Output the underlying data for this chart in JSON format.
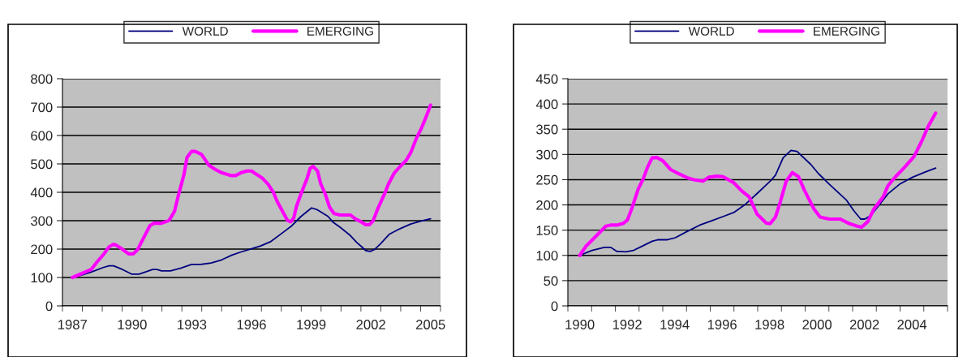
{
  "chart_data": [
    {
      "type": "line",
      "legend": "top",
      "grid": "y",
      "xlim": [
        1986.5,
        2005.5
      ],
      "ylim": [
        0,
        800
      ],
      "yticks": [
        0,
        100,
        200,
        300,
        400,
        500,
        600,
        700,
        800
      ],
      "xticks": [
        {
          "value": 1986.5,
          "label": null
        },
        {
          "value": 1987,
          "label": "1987"
        },
        {
          "value": 1987.5,
          "label": null
        },
        {
          "value": 1988.5,
          "label": null
        },
        {
          "value": 1989.5,
          "label": null
        },
        {
          "value": 1990,
          "label": "1990"
        },
        {
          "value": 1990.5,
          "label": null
        },
        {
          "value": 1991.5,
          "label": null
        },
        {
          "value": 1992.5,
          "label": null
        },
        {
          "value": 1993,
          "label": "1993"
        },
        {
          "value": 1993.5,
          "label": null
        },
        {
          "value": 1994.5,
          "label": null
        },
        {
          "value": 1995.5,
          "label": null
        },
        {
          "value": 1996,
          "label": "1996"
        },
        {
          "value": 1996.5,
          "label": null
        },
        {
          "value": 1997.5,
          "label": null
        },
        {
          "value": 1998.5,
          "label": null
        },
        {
          "value": 1999,
          "label": "1999"
        },
        {
          "value": 1999.5,
          "label": null
        },
        {
          "value": 2000.5,
          "label": null
        },
        {
          "value": 2001.5,
          "label": null
        },
        {
          "value": 2002,
          "label": "2002"
        },
        {
          "value": 2002.5,
          "label": null
        },
        {
          "value": 2003.5,
          "label": null
        },
        {
          "value": 2004.5,
          "label": null
        },
        {
          "value": 2005,
          "label": "2005"
        },
        {
          "value": 2005.5,
          "label": null
        }
      ],
      "series": [
        {
          "name": "WORLD",
          "color": "#000080",
          "x": [
            1987.0,
            1987.48,
            1987.94,
            1988.54,
            1988.84,
            1989.07,
            1989.52,
            1989.97,
            1990.35,
            1990.65,
            1991.03,
            1991.25,
            1991.48,
            1991.93,
            1992.46,
            1992.99,
            1993.44,
            1993.97,
            1994.5,
            1995.02,
            1995.48,
            1996.0,
            1996.46,
            1996.98,
            1997.59,
            1998.04,
            1998.49,
            1999.02,
            1999.32,
            1999.85,
            2000.08,
            2000.45,
            2000.98,
            2001.28,
            2001.51,
            2001.74,
            2001.96,
            2002.19,
            2002.49,
            2002.94,
            2003.47,
            2004.0,
            2004.53,
            2005.0
          ],
          "values": [
            100,
            109,
            119,
            135,
            141,
            141,
            128,
            112,
            112,
            119,
            128,
            128,
            123,
            123,
            133,
            146,
            146,
            151,
            162,
            179,
            190,
            201,
            211,
            227,
            259,
            283,
            315,
            345,
            338,
            315,
            296,
            277,
            247,
            224,
            210,
            195,
            192,
            199,
            219,
            253,
            272,
            288,
            299,
            307
          ]
        },
        {
          "name": "EMERGING",
          "color": "#ff00ff",
          "x": [
            1987.0,
            1987.94,
            1988.24,
            1988.54,
            1988.84,
            1989.07,
            1989.22,
            1989.44,
            1989.82,
            1990.05,
            1990.27,
            1990.5,
            1990.9,
            1991.1,
            1991.48,
            1991.86,
            1992.13,
            1992.31,
            1992.61,
            1992.76,
            1992.99,
            1993.18,
            1993.49,
            1993.85,
            1994.19,
            1994.5,
            1994.95,
            1995.2,
            1995.48,
            1995.78,
            1996.0,
            1996.23,
            1996.53,
            1996.83,
            1997.1,
            1997.29,
            1997.59,
            1997.81,
            1997.97,
            1998.12,
            1998.27,
            1998.49,
            1998.79,
            1998.95,
            1999.1,
            1999.32,
            1999.47,
            1999.7,
            1999.93,
            2000.15,
            2000.45,
            2000.98,
            2001.21,
            2001.51,
            2001.74,
            2001.93,
            2002.11,
            2002.34,
            2002.71,
            2002.87,
            2003.17,
            2003.39,
            2003.77,
            2004.0,
            2004.3,
            2004.53,
            2004.75,
            2005.0
          ],
          "values": [
            100,
            128,
            155,
            179,
            208,
            217,
            213,
            203,
            183,
            183,
            197,
            229,
            283,
            291,
            291,
            301,
            333,
            384,
            464,
            523,
            544,
            544,
            533,
            496,
            480,
            469,
            459,
            459,
            469,
            475,
            475,
            464,
            451,
            429,
            400,
            368,
            329,
            301,
            296,
            309,
            352,
            395,
            448,
            485,
            491,
            475,
            432,
            395,
            347,
            325,
            320,
            320,
            307,
            296,
            286,
            286,
            299,
            341,
            398,
            427,
            467,
            485,
            512,
            539,
            592,
            624,
            661,
            707
          ]
        }
      ]
    },
    {
      "type": "line",
      "legend": "top",
      "grid": "y",
      "xlim": [
        1989.5,
        2005.5
      ],
      "ylim": [
        0,
        450
      ],
      "yticks": [
        0,
        50,
        100,
        150,
        200,
        250,
        300,
        350,
        400,
        450
      ],
      "xticks": [
        {
          "value": 1989.5,
          "label": null
        },
        {
          "value": 1990,
          "label": "1990"
        },
        {
          "value": 1990.5,
          "label": null
        },
        {
          "value": 1991.5,
          "label": null
        },
        {
          "value": 1992,
          "label": "1992"
        },
        {
          "value": 1992.5,
          "label": null
        },
        {
          "value": 1993.5,
          "label": null
        },
        {
          "value": 1994,
          "label": "1994"
        },
        {
          "value": 1994.5,
          "label": null
        },
        {
          "value": 1995.5,
          "label": null
        },
        {
          "value": 1996,
          "label": "1996"
        },
        {
          "value": 1996.5,
          "label": null
        },
        {
          "value": 1997.5,
          "label": null
        },
        {
          "value": 1998,
          "label": "1998"
        },
        {
          "value": 1998.5,
          "label": null
        },
        {
          "value": 1999.5,
          "label": null
        },
        {
          "value": 2000,
          "label": "2000"
        },
        {
          "value": 2000.5,
          "label": null
        },
        {
          "value": 2001.5,
          "label": null
        },
        {
          "value": 2002,
          "label": "2002"
        },
        {
          "value": 2002.5,
          "label": null
        },
        {
          "value": 2003.5,
          "label": null
        },
        {
          "value": 2004,
          "label": "2004"
        },
        {
          "value": 2004.5,
          "label": null
        },
        {
          "value": 2005.5,
          "label": null
        }
      ],
      "series": [
        {
          "name": "WORLD",
          "color": "#000080",
          "x": [
            1990.0,
            1990.52,
            1991.04,
            1991.3,
            1991.56,
            1991.95,
            1992.27,
            1992.53,
            1992.79,
            1993.05,
            1993.31,
            1993.7,
            1994.03,
            1994.55,
            1995.06,
            1995.58,
            1996.1,
            1996.49,
            1996.95,
            1997.53,
            1998.05,
            1998.25,
            1998.57,
            1998.9,
            1999.16,
            1999.74,
            2000.06,
            2000.52,
            2001.23,
            2001.56,
            2001.84,
            2002.01,
            2002.27,
            2002.99,
            2003.51,
            2004.03,
            2004.55,
            2005.0
          ],
          "values": [
            100,
            110,
            116,
            116,
            108,
            107,
            110,
            116,
            122,
            128,
            131,
            131,
            135,
            148,
            160,
            169,
            178,
            185,
            200,
            225,
            248,
            259,
            293,
            308,
            306,
            280,
            262,
            241,
            210,
            188,
            172,
            172,
            179,
            222,
            242,
            255,
            265,
            273
          ]
        },
        {
          "name": "EMERGING",
          "color": "#ff00ff",
          "x": [
            1990.0,
            1990.26,
            1990.58,
            1991.1,
            1991.3,
            1991.56,
            1991.82,
            1992.01,
            1992.21,
            1992.47,
            1992.66,
            1992.86,
            1993.05,
            1993.25,
            1993.51,
            1993.83,
            1994.16,
            1994.52,
            1994.81,
            1995.19,
            1995.45,
            1995.78,
            1996.04,
            1996.49,
            1996.82,
            1997.14,
            1997.47,
            1997.86,
            1998.03,
            1998.25,
            1998.44,
            1998.7,
            1998.96,
            1999.22,
            1999.48,
            1999.87,
            2000.13,
            2000.52,
            2000.97,
            2001.36,
            2001.69,
            2001.88,
            2002.14,
            2002.4,
            2002.79,
            2002.99,
            2003.31,
            2003.7,
            2004.09,
            2004.42,
            2004.68,
            2005.0
          ],
          "values": [
            100,
            118,
            133,
            158,
            160,
            160,
            163,
            170,
            195,
            232,
            250,
            275,
            293,
            294,
            287,
            270,
            262,
            254,
            250,
            247,
            255,
            257,
            256,
            244,
            228,
            216,
            182,
            164,
            163,
            176,
            204,
            247,
            264,
            256,
            228,
            192,
            176,
            172,
            172,
            163,
            158,
            156,
            167,
            192,
            216,
            238,
            256,
            275,
            296,
            327,
            355,
            382
          ]
        }
      ]
    }
  ]
}
